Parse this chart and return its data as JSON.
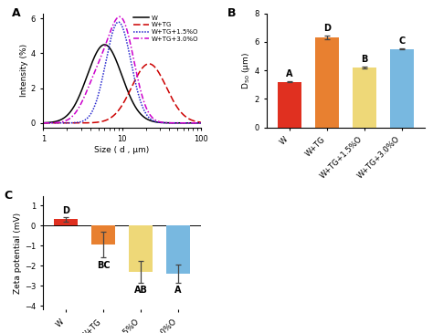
{
  "panel_A_label": "A",
  "panel_B_label": "B",
  "panel_C_label": "C",
  "panelA_xlabel": "Size ( d , μm)",
  "panelA_ylabel": "Intensity (%)",
  "panelA_ylim": [
    -0.25,
    6.3
  ],
  "panelA_xlim": [
    1,
    100
  ],
  "bar_categories": [
    "W",
    "W+TG",
    "W+TG+1.5%O",
    "W+TG+3.0%O"
  ],
  "bar_B_values": [
    3.2,
    6.3,
    4.2,
    5.5
  ],
  "bar_B_errors": [
    0.05,
    0.12,
    0.05,
    0.05
  ],
  "bar_B_colors": [
    "#e03020",
    "#e88030",
    "#eed878",
    "#78b8e0"
  ],
  "bar_B_labels": [
    "A",
    "D",
    "B",
    "C"
  ],
  "panelB_ylabel": "D$_{50}$ (μm)",
  "panelB_ylim": [
    0,
    8
  ],
  "bar_C_values": [
    0.32,
    -0.95,
    -2.3,
    -2.4
  ],
  "bar_C_errors": [
    0.12,
    0.65,
    0.55,
    0.45
  ],
  "bar_C_colors": [
    "#e03020",
    "#e88030",
    "#eed878",
    "#78b8e0"
  ],
  "bar_C_labels": [
    "D",
    "BC",
    "AB",
    "A"
  ],
  "panelC_ylabel": "Zeta potential (mV)",
  "panelC_ylim": [
    -4.2,
    1.5
  ],
  "error_color": "#444444"
}
